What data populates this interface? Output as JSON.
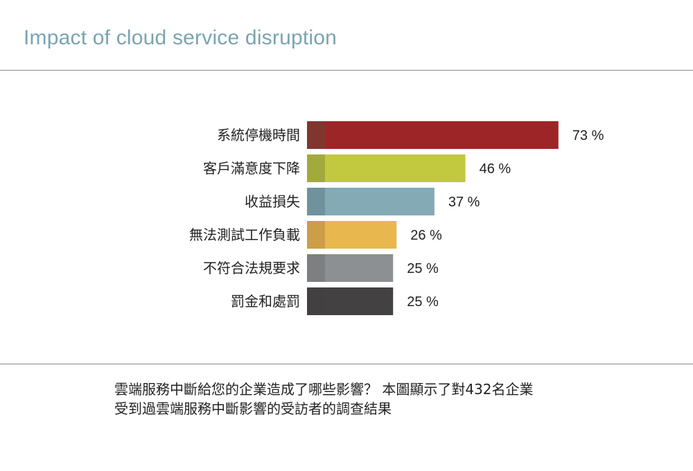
{
  "title": "Impact of cloud service disruption",
  "caption": {
    "line1": "雲端服務中斷給您的企業造成了哪些影響？ 本圖顯示了對432名企業",
    "line2": "受到過雲端服務中斷影響的受訪者的調查結果"
  },
  "chart_data": {
    "type": "bar",
    "orientation": "horizontal",
    "categories": [
      "系統停機時間",
      "客戶滿意度下降",
      "收益損失",
      "無法測試工作負載",
      "不符合法規要求",
      "罰金和處罰"
    ],
    "values": [
      73,
      46,
      37,
      26,
      25,
      25
    ],
    "value_labels": [
      "73 %",
      "46 %",
      "37 %",
      "26 %",
      "25 %",
      "25 %"
    ],
    "colors": [
      "#9d2528",
      "#c3c93f",
      "#84aab5",
      "#e8b74e",
      "#8d9092",
      "#434142"
    ],
    "accent_colors": [
      "#7a3a30",
      "#9ea43d",
      "#6c8e99",
      "#c89a48",
      "#7a7c7e",
      "#434142"
    ],
    "xlim": [
      0,
      100
    ],
    "grid": false,
    "legend": "none"
  }
}
